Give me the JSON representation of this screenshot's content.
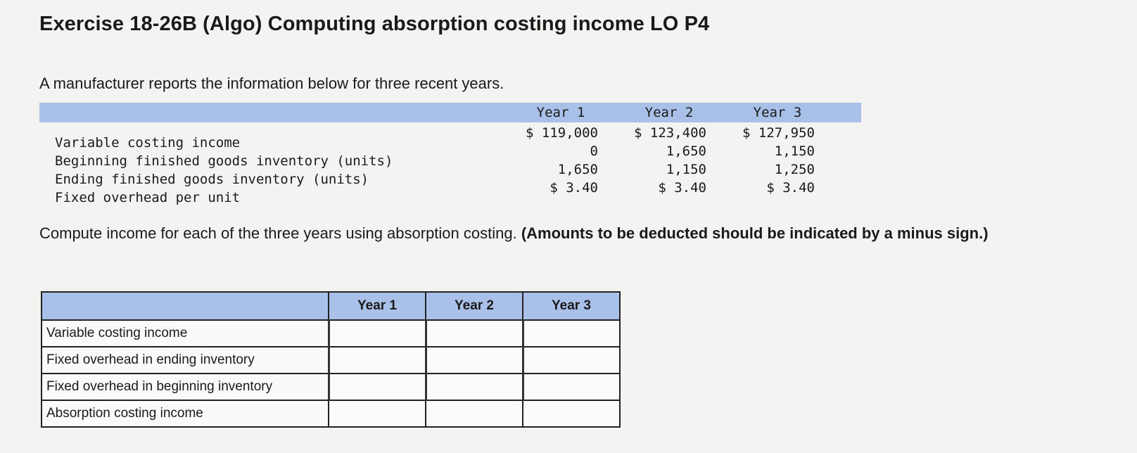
{
  "title": "Exercise 18-26B (Algo) Computing absorption costing income LO P4",
  "intro": "A manufacturer reports the information below for three recent years.",
  "given_table": {
    "headers": [
      "Year 1",
      "Year 2",
      "Year 3"
    ],
    "row_labels": [
      "Variable costing income",
      "Beginning finished goods inventory (units)",
      "Ending finished goods inventory (units)",
      "Fixed overhead per unit"
    ],
    "columns": [
      [
        "$ 119,000",
        "0",
        "1,650",
        "$ 3.40"
      ],
      [
        "$ 123,400",
        "1,650",
        "1,150",
        "$ 3.40"
      ],
      [
        "$ 127,950",
        "1,150",
        "1,250",
        "$ 3.40"
      ]
    ]
  },
  "instruction": {
    "text": "Compute income for each of the three years using absorption costing.",
    "bold": "(Amounts to be deducted should be indicated by a minus sign.)"
  },
  "answer_table": {
    "headers": [
      "Year 1",
      "Year 2",
      "Year 3"
    ],
    "rows": [
      "Variable costing income",
      "Fixed overhead in ending inventory",
      "Fixed overhead in beginning inventory",
      "Absorption costing income"
    ]
  }
}
